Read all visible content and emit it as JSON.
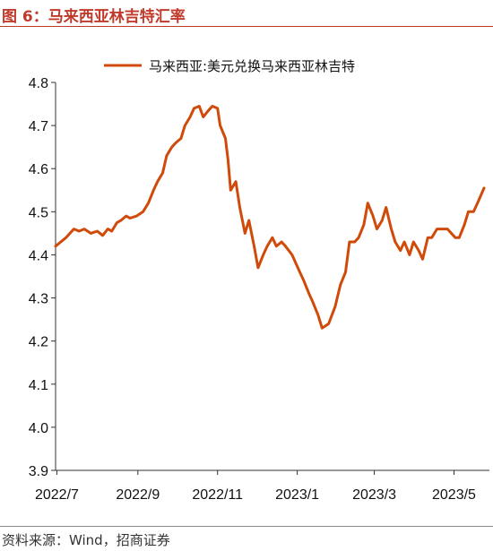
{
  "figure": {
    "title": "图 6：马来西亚林吉特汇率",
    "source": "资料来源：Wind，招商证券"
  },
  "colors": {
    "accent": "#C0392B",
    "series_line": "#D04A0A",
    "axis": "#333333"
  },
  "chart_data": {
    "type": "line",
    "title": "",
    "xlabel": "",
    "ylabel": "",
    "ylim": [
      3.9,
      4.8
    ],
    "yticks": [
      "3.9",
      "4.0",
      "4.1",
      "4.2",
      "4.3",
      "4.4",
      "4.5",
      "4.6",
      "4.7",
      "4.8"
    ],
    "xlim": [
      "2022-06-30",
      "2023-05-24"
    ],
    "xticks": [
      {
        "date": "2022-07-01",
        "label": "2022/7"
      },
      {
        "date": "2022-09-01",
        "label": "2022/9"
      },
      {
        "date": "2022-11-01",
        "label": "2022/11"
      },
      {
        "date": "2023-01-01",
        "label": "2023/1"
      },
      {
        "date": "2023-03-01",
        "label": "2023/3"
      },
      {
        "date": "2023-05-01",
        "label": "2023/5"
      }
    ],
    "grid": false,
    "legend": {
      "position": "top",
      "frame": false
    },
    "series": [
      {
        "name": "马来西亚:美元兑换马来西亚林吉特",
        "color": "#D04A0A",
        "x": [
          "2022-06-30",
          "2022-07-04",
          "2022-07-08",
          "2022-07-11",
          "2022-07-14",
          "2022-07-18",
          "2022-07-22",
          "2022-07-27",
          "2022-08-01",
          "2022-08-05",
          "2022-08-09",
          "2022-08-12",
          "2022-08-16",
          "2022-08-19",
          "2022-08-23",
          "2022-08-26",
          "2022-08-31",
          "2022-09-05",
          "2022-09-09",
          "2022-09-13",
          "2022-09-16",
          "2022-09-20",
          "2022-09-23",
          "2022-09-27",
          "2022-09-30",
          "2022-10-04",
          "2022-10-07",
          "2022-10-11",
          "2022-10-14",
          "2022-10-18",
          "2022-10-21",
          "2022-10-25",
          "2022-10-28",
          "2022-11-01",
          "2022-11-03",
          "2022-11-07",
          "2022-11-09",
          "2022-11-11",
          "2022-11-15",
          "2022-11-18",
          "2022-11-22",
          "2022-11-25",
          "2022-11-29",
          "2022-12-02",
          "2022-12-06",
          "2022-12-09",
          "2022-12-13",
          "2022-12-16",
          "2022-12-20",
          "2022-12-23",
          "2022-12-28",
          "2023-01-03",
          "2023-01-06",
          "2023-01-10",
          "2023-01-13",
          "2023-01-17",
          "2023-01-20",
          "2023-01-25",
          "2023-01-30",
          "2023-02-03",
          "2023-02-07",
          "2023-02-10",
          "2023-02-14",
          "2023-02-17",
          "2023-02-21",
          "2023-02-24",
          "2023-02-28",
          "2023-03-03",
          "2023-03-07",
          "2023-03-10",
          "2023-03-14",
          "2023-03-17",
          "2023-03-21",
          "2023-03-24",
          "2023-03-28",
          "2023-03-31",
          "2023-04-04",
          "2023-04-07",
          "2023-04-11",
          "2023-04-14",
          "2023-04-18",
          "2023-04-21",
          "2023-04-26",
          "2023-05-02",
          "2023-05-05",
          "2023-05-09",
          "2023-05-12",
          "2023-05-16",
          "2023-05-19",
          "2023-05-24"
        ],
        "values": [
          4.42,
          4.43,
          4.44,
          4.45,
          4.46,
          4.455,
          4.46,
          4.45,
          4.455,
          4.445,
          4.46,
          4.455,
          4.475,
          4.48,
          4.49,
          4.485,
          4.49,
          4.5,
          4.52,
          4.55,
          4.57,
          4.59,
          4.63,
          4.65,
          4.66,
          4.67,
          4.7,
          4.72,
          4.74,
          4.745,
          4.72,
          4.735,
          4.745,
          4.74,
          4.7,
          4.67,
          4.62,
          4.55,
          4.57,
          4.51,
          4.45,
          4.48,
          4.42,
          4.37,
          4.4,
          4.42,
          4.44,
          4.42,
          4.43,
          4.42,
          4.4,
          4.36,
          4.34,
          4.31,
          4.29,
          4.26,
          4.23,
          4.24,
          4.28,
          4.33,
          4.36,
          4.43,
          4.43,
          4.44,
          4.47,
          4.52,
          4.49,
          4.46,
          4.48,
          4.51,
          4.46,
          4.43,
          4.41,
          4.43,
          4.4,
          4.43,
          4.41,
          4.39,
          4.44,
          4.44,
          4.46,
          4.46,
          4.46,
          4.44,
          4.44,
          4.47,
          4.5,
          4.5,
          4.52,
          4.555
        ]
      }
    ]
  }
}
